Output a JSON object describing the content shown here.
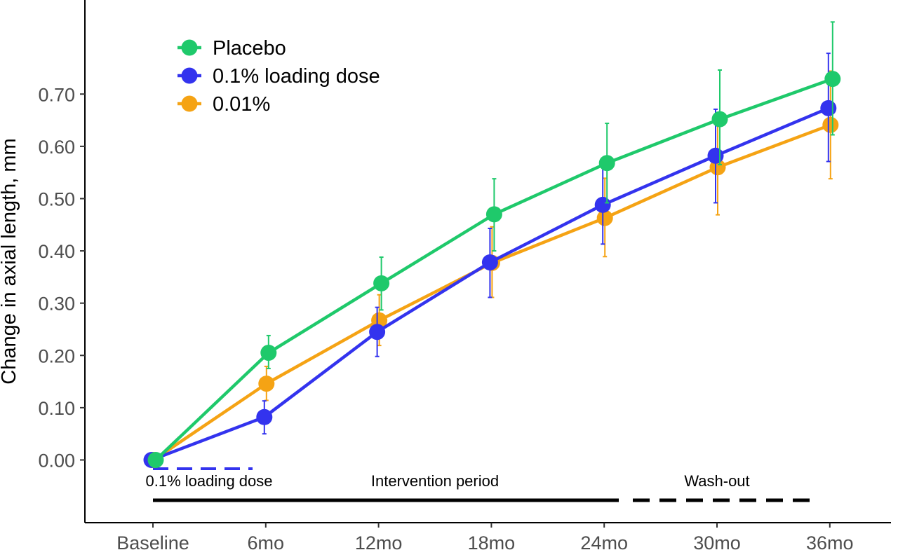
{
  "chart_data": {
    "type": "line",
    "title": "",
    "xlabel": "",
    "ylabel": "Change in axial length, mm",
    "categories": [
      "Baseline",
      "6mo",
      "12mo",
      "18mo",
      "24mo",
      "30mo",
      "36mo"
    ],
    "yticks": [
      "0.00",
      "0.10",
      "0.20",
      "0.30",
      "0.40",
      "0.50",
      "0.60",
      "0.70"
    ],
    "ylim": [
      -0.12,
      0.88
    ],
    "grid": false,
    "legend_position": "top-left",
    "series": [
      {
        "name": "Placebo",
        "color": "#1fc96b",
        "values": [
          0.0,
          0.205,
          0.338,
          0.47,
          0.568,
          0.652,
          0.729
        ],
        "err_low": [
          0.0,
          0.175,
          0.287,
          0.4,
          0.492,
          0.565,
          0.622
        ],
        "err_high": [
          0.0,
          0.238,
          0.388,
          0.538,
          0.644,
          0.746,
          0.838
        ]
      },
      {
        "name": "0.1% loading dose",
        "color": "#3333ee",
        "values": [
          0.0,
          0.082,
          0.245,
          0.378,
          0.488,
          0.582,
          0.673
        ],
        "err_low": [
          0.0,
          0.05,
          0.198,
          0.311,
          0.413,
          0.492,
          0.571
        ],
        "err_high": [
          0.0,
          0.113,
          0.292,
          0.443,
          0.562,
          0.671,
          0.778
        ]
      },
      {
        "name": "0.01%",
        "color": "#f5a314",
        "values": [
          0.0,
          0.146,
          0.267,
          0.377,
          0.463,
          0.56,
          0.641
        ],
        "err_low": [
          0.0,
          0.114,
          0.219,
          0.311,
          0.389,
          0.469,
          0.538
        ],
        "err_high": [
          0.0,
          0.179,
          0.316,
          0.446,
          0.539,
          0.652,
          0.744
        ]
      }
    ],
    "annotations": {
      "loading_label": "0.1% loading dose",
      "intervention_label": "Intervention period",
      "washout_label": "Wash-out"
    }
  }
}
